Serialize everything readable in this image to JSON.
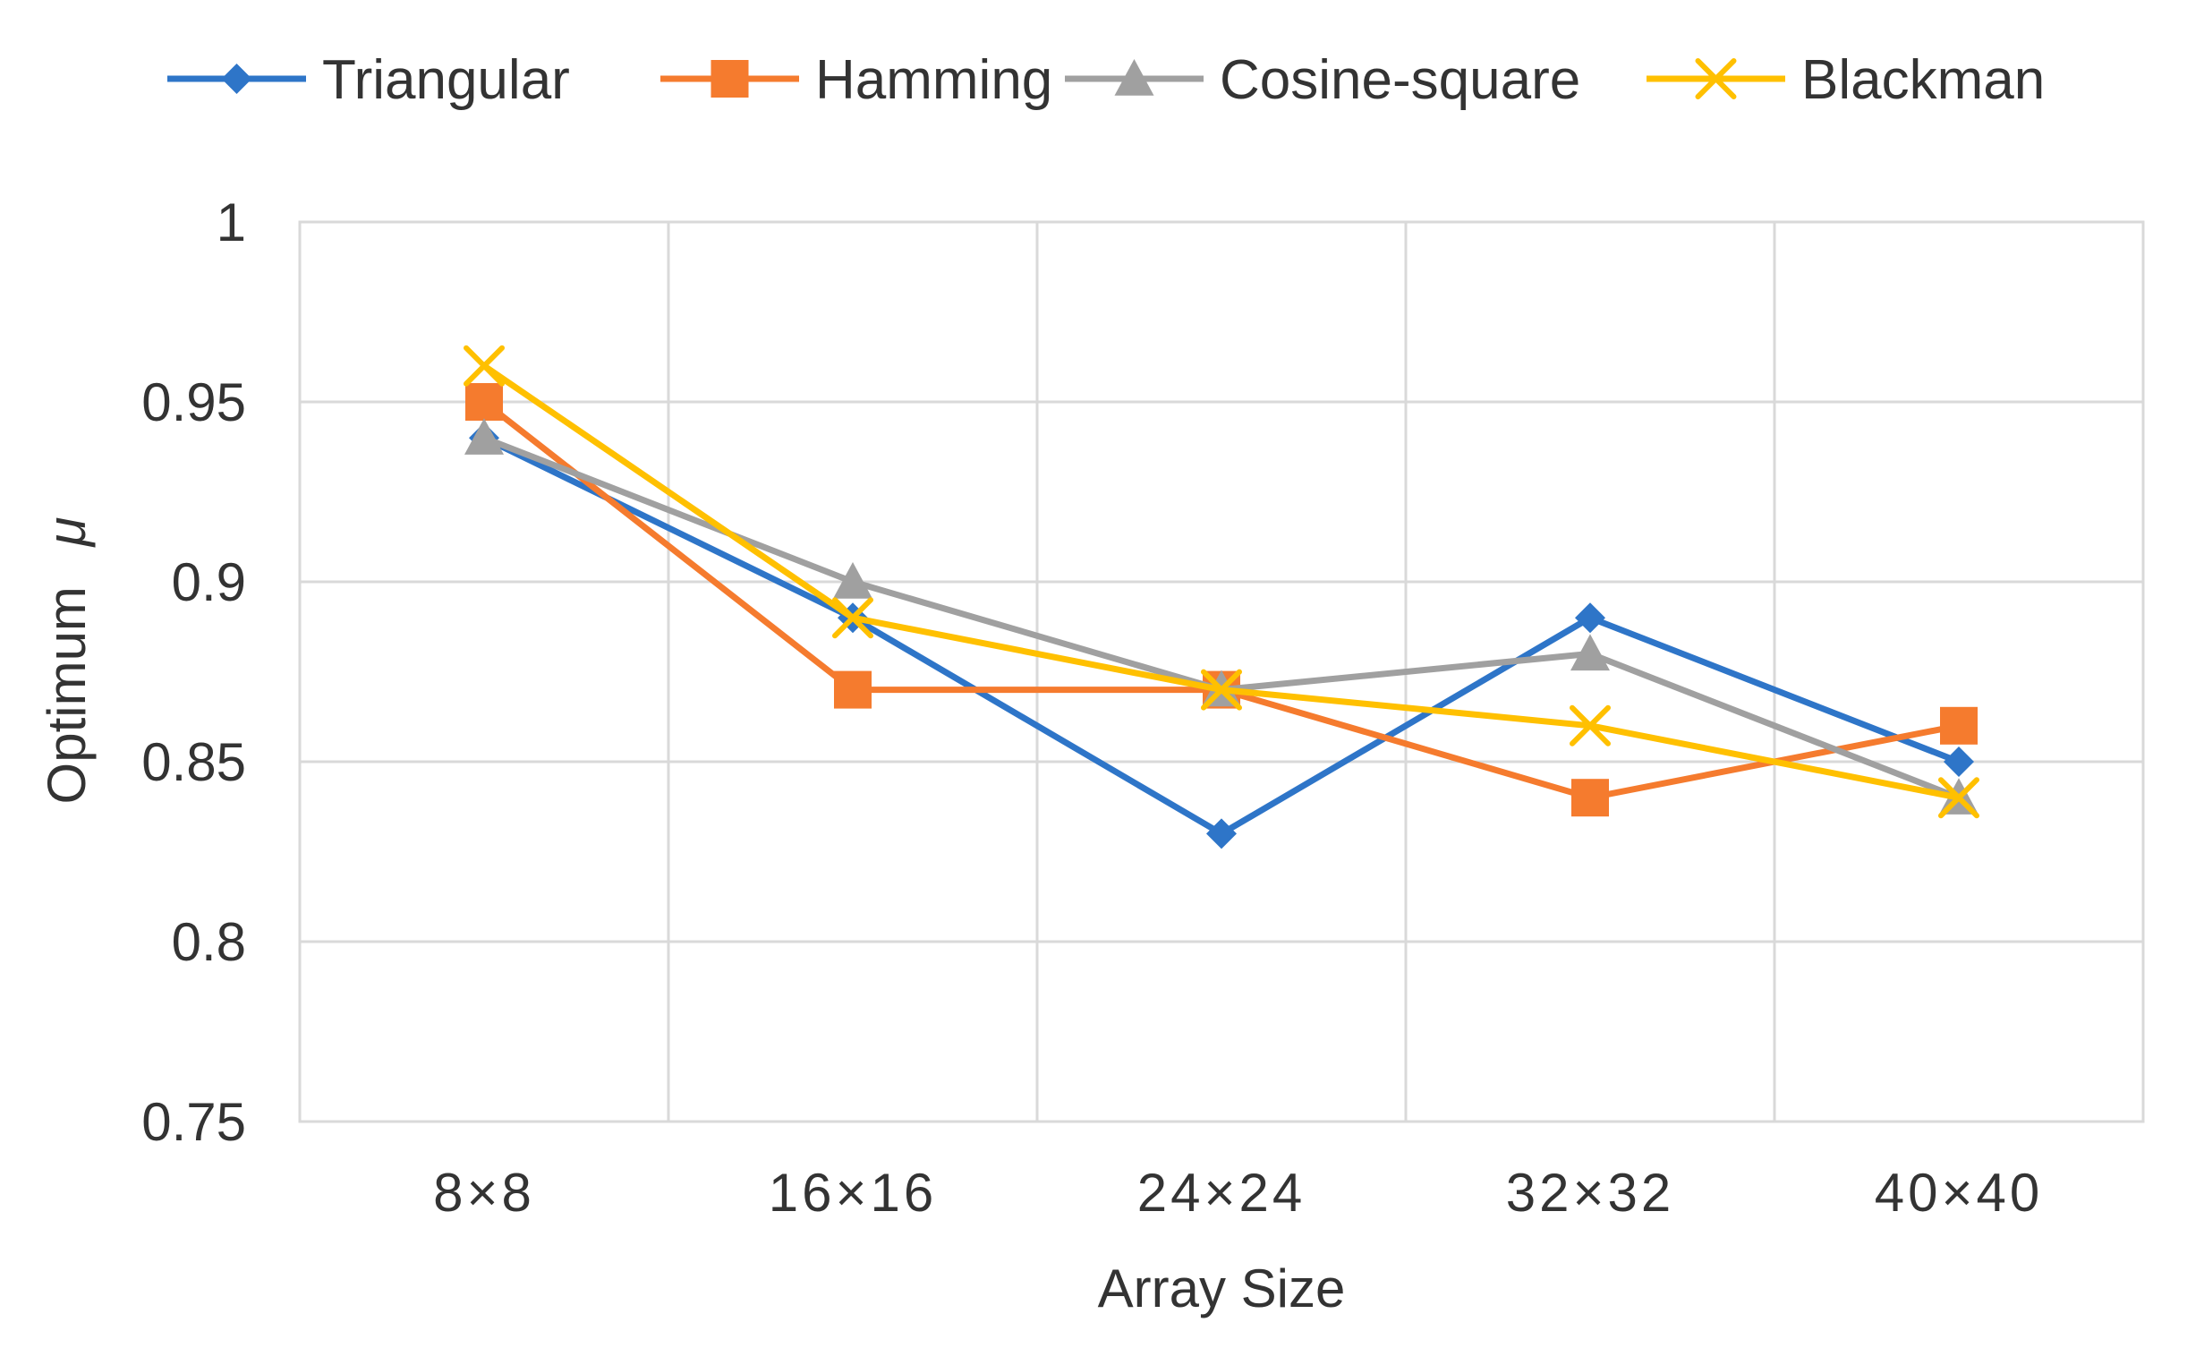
{
  "chart_data": {
    "type": "line",
    "title": "",
    "xlabel": "Array Size",
    "ylabel": "Optimum",
    "ylabel_symbol": "μ",
    "categories": [
      "8×8",
      "16×16",
      "24×24",
      "32×32",
      "40×40"
    ],
    "ylim": [
      0.75,
      1.0
    ],
    "yticks": [
      0.75,
      0.8,
      0.85,
      0.9,
      0.95,
      1.0
    ],
    "ytick_labels": [
      "0.75",
      "0.8",
      "0.85",
      "0.9",
      "0.95",
      "1"
    ],
    "grid": true,
    "legend_position": "top",
    "series": [
      {
        "name": "Triangular",
        "color": "#2E75C8",
        "marker": "diamond",
        "values": [
          0.94,
          0.89,
          0.83,
          0.89,
          0.85
        ]
      },
      {
        "name": "Hamming",
        "color": "#F57B2E",
        "marker": "square",
        "values": [
          0.95,
          0.87,
          0.87,
          0.84,
          0.86
        ]
      },
      {
        "name": "Cosine-square",
        "color": "#A0A0A0",
        "marker": "triangle",
        "values": [
          0.94,
          0.9,
          0.87,
          0.88,
          0.84
        ]
      },
      {
        "name": "Blackman",
        "color": "#FFC000",
        "marker": "x",
        "values": [
          0.96,
          0.89,
          0.87,
          0.86,
          0.84
        ]
      }
    ]
  }
}
